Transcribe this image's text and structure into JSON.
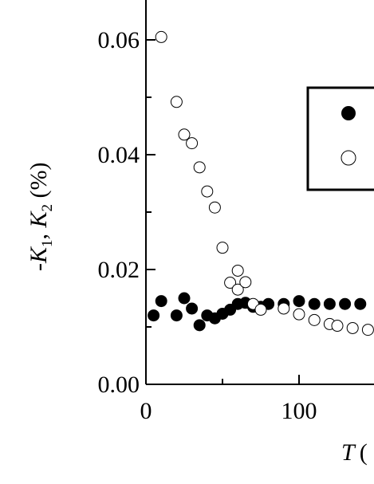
{
  "chart_data": {
    "type": "scatter",
    "xlabel_var": "T",
    "xlabel_rest": "(",
    "ylabel": "-K1, K2 (%)",
    "ylabel_parts": {
      "minus": "-",
      "k1": "K",
      "sub1": "1",
      "comma": ", ",
      "k2": "K",
      "sub2": "2",
      "unit": " (%)"
    },
    "xlim": [
      0,
      150
    ],
    "ylim": [
      0.0,
      0.066
    ],
    "xticks": [
      0,
      100
    ],
    "xtick_labels": [
      "0",
      "100"
    ],
    "yticks": [
      0.0,
      0.02,
      0.04,
      0.06
    ],
    "ytick_labels": [
      "0.00",
      "0.02",
      "0.04",
      "0.06"
    ],
    "series": [
      {
        "marker": "filled-circle",
        "color": "#000000",
        "points": [
          [
            5,
            0.012
          ],
          [
            10,
            0.0145
          ],
          [
            20,
            0.012
          ],
          [
            25,
            0.015
          ],
          [
            30,
            0.0132
          ],
          [
            35,
            0.0103
          ],
          [
            40,
            0.012
          ],
          [
            45,
            0.0115
          ],
          [
            50,
            0.0123
          ],
          [
            55,
            0.013
          ],
          [
            60,
            0.014
          ],
          [
            65,
            0.0142
          ],
          [
            70,
            0.0135
          ],
          [
            75,
            0.0135
          ],
          [
            80,
            0.014
          ],
          [
            90,
            0.014
          ],
          [
            100,
            0.0145
          ],
          [
            110,
            0.014
          ],
          [
            120,
            0.014
          ],
          [
            130,
            0.014
          ],
          [
            140,
            0.014
          ]
        ]
      },
      {
        "marker": "open-circle",
        "color": "#000000",
        "points": [
          [
            10,
            0.0605
          ],
          [
            20,
            0.0492
          ],
          [
            25,
            0.0435
          ],
          [
            30,
            0.042
          ],
          [
            35,
            0.0378
          ],
          [
            40,
            0.0336
          ],
          [
            45,
            0.0308
          ],
          [
            50,
            0.0238
          ],
          [
            55,
            0.0177
          ],
          [
            60,
            0.0165
          ],
          [
            60,
            0.0198
          ],
          [
            65,
            0.0178
          ],
          [
            70,
            0.014
          ],
          [
            75,
            0.013
          ],
          [
            90,
            0.0132
          ],
          [
            100,
            0.0122
          ],
          [
            110,
            0.0112
          ],
          [
            120,
            0.0105
          ],
          [
            125,
            0.0102
          ],
          [
            135,
            0.0098
          ],
          [
            145,
            0.0095
          ]
        ]
      }
    ],
    "legend_position": "right"
  }
}
